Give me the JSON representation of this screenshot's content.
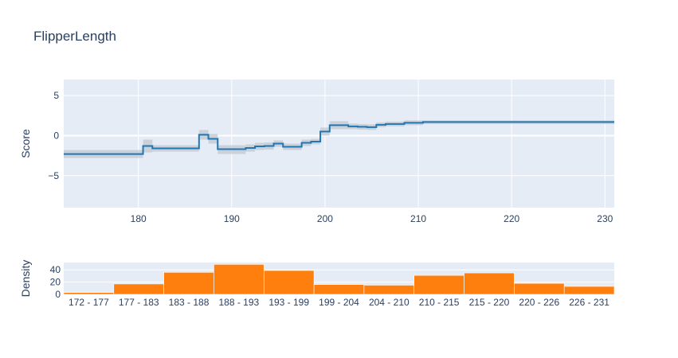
{
  "chart_data": [
    {
      "type": "line",
      "title": "FlipperLength",
      "xlabel": "",
      "ylabel": "Score",
      "xlim": [
        172,
        231
      ],
      "ylim": [
        -9,
        7
      ],
      "xticks": [
        180,
        190,
        200,
        210,
        220,
        230
      ],
      "yticks": [
        5,
        0,
        -5
      ],
      "grid": true,
      "colors": {
        "line": "#1f77b4",
        "band": "#c8ccd4",
        "plot_bg": "#e5ecf6",
        "grid": "#ffffff"
      },
      "series": [
        {
          "name": "Score",
          "steps": [
            {
              "x0": 172,
              "x1": 180.5,
              "y": -2.3,
              "lo": -2.8,
              "hi": -1.8
            },
            {
              "x0": 180.5,
              "x1": 181.5,
              "y": -1.3,
              "lo": -2.1,
              "hi": -0.5
            },
            {
              "x0": 181.5,
              "x1": 186.5,
              "y": -1.6,
              "lo": -2.0,
              "hi": -1.2
            },
            {
              "x0": 186.5,
              "x1": 187.5,
              "y": 0.1,
              "lo": -0.5,
              "hi": 0.7
            },
            {
              "x0": 187.5,
              "x1": 188.5,
              "y": -0.4,
              "lo": -1.0,
              "hi": 0.2
            },
            {
              "x0": 188.5,
              "x1": 191.5,
              "y": -1.7,
              "lo": -2.3,
              "hi": -1.2
            },
            {
              "x0": 191.5,
              "x1": 192.5,
              "y": -1.55,
              "lo": -2.0,
              "hi": -1.1
            },
            {
              "x0": 192.5,
              "x1": 193.5,
              "y": -1.35,
              "lo": -1.8,
              "hi": -0.9
            },
            {
              "x0": 193.5,
              "x1": 194.5,
              "y": -1.3,
              "lo": -1.75,
              "hi": -0.85
            },
            {
              "x0": 194.5,
              "x1": 195.5,
              "y": -1.0,
              "lo": -1.4,
              "hi": -0.6
            },
            {
              "x0": 195.5,
              "x1": 197.5,
              "y": -1.4,
              "lo": -1.8,
              "hi": -1.0
            },
            {
              "x0": 197.5,
              "x1": 198.5,
              "y": -0.9,
              "lo": -1.3,
              "hi": -0.5
            },
            {
              "x0": 198.5,
              "x1": 199.5,
              "y": -0.75,
              "lo": -1.1,
              "hi": -0.4
            },
            {
              "x0": 199.5,
              "x1": 200.5,
              "y": 0.5,
              "lo": 0.0,
              "hi": 1.0
            },
            {
              "x0": 200.5,
              "x1": 202.5,
              "y": 1.3,
              "lo": 0.8,
              "hi": 1.8
            },
            {
              "x0": 202.5,
              "x1": 203.5,
              "y": 1.15,
              "lo": 0.8,
              "hi": 1.5
            },
            {
              "x0": 203.5,
              "x1": 204.5,
              "y": 1.1,
              "lo": 0.75,
              "hi": 1.45
            },
            {
              "x0": 204.5,
              "x1": 205.5,
              "y": 1.05,
              "lo": 0.7,
              "hi": 1.4
            },
            {
              "x0": 205.5,
              "x1": 206.5,
              "y": 1.35,
              "lo": 1.05,
              "hi": 1.65
            },
            {
              "x0": 206.5,
              "x1": 208.5,
              "y": 1.45,
              "lo": 1.15,
              "hi": 1.75
            },
            {
              "x0": 208.5,
              "x1": 210.5,
              "y": 1.6,
              "lo": 1.3,
              "hi": 1.9
            },
            {
              "x0": 210.5,
              "x1": 231,
              "y": 1.7,
              "lo": 1.45,
              "hi": 1.9
            }
          ]
        }
      ]
    },
    {
      "type": "bar",
      "title": "",
      "xlabel": "",
      "ylabel": "Density",
      "ylim": [
        0,
        52
      ],
      "yticks": [
        0,
        20,
        40
      ],
      "grid": true,
      "colors": {
        "bar": "#ff7f0e",
        "plot_bg": "#e5ecf6"
      },
      "categories": [
        "172 - 177",
        "177 - 183",
        "183 - 188",
        "188 - 193",
        "193 - 199",
        "199 - 204",
        "204 - 210",
        "210 - 215",
        "215 - 220",
        "220 - 226",
        "226 - 231"
      ],
      "values": [
        3,
        17,
        36,
        49,
        39,
        16,
        15,
        31,
        35,
        18,
        13
      ]
    }
  ]
}
